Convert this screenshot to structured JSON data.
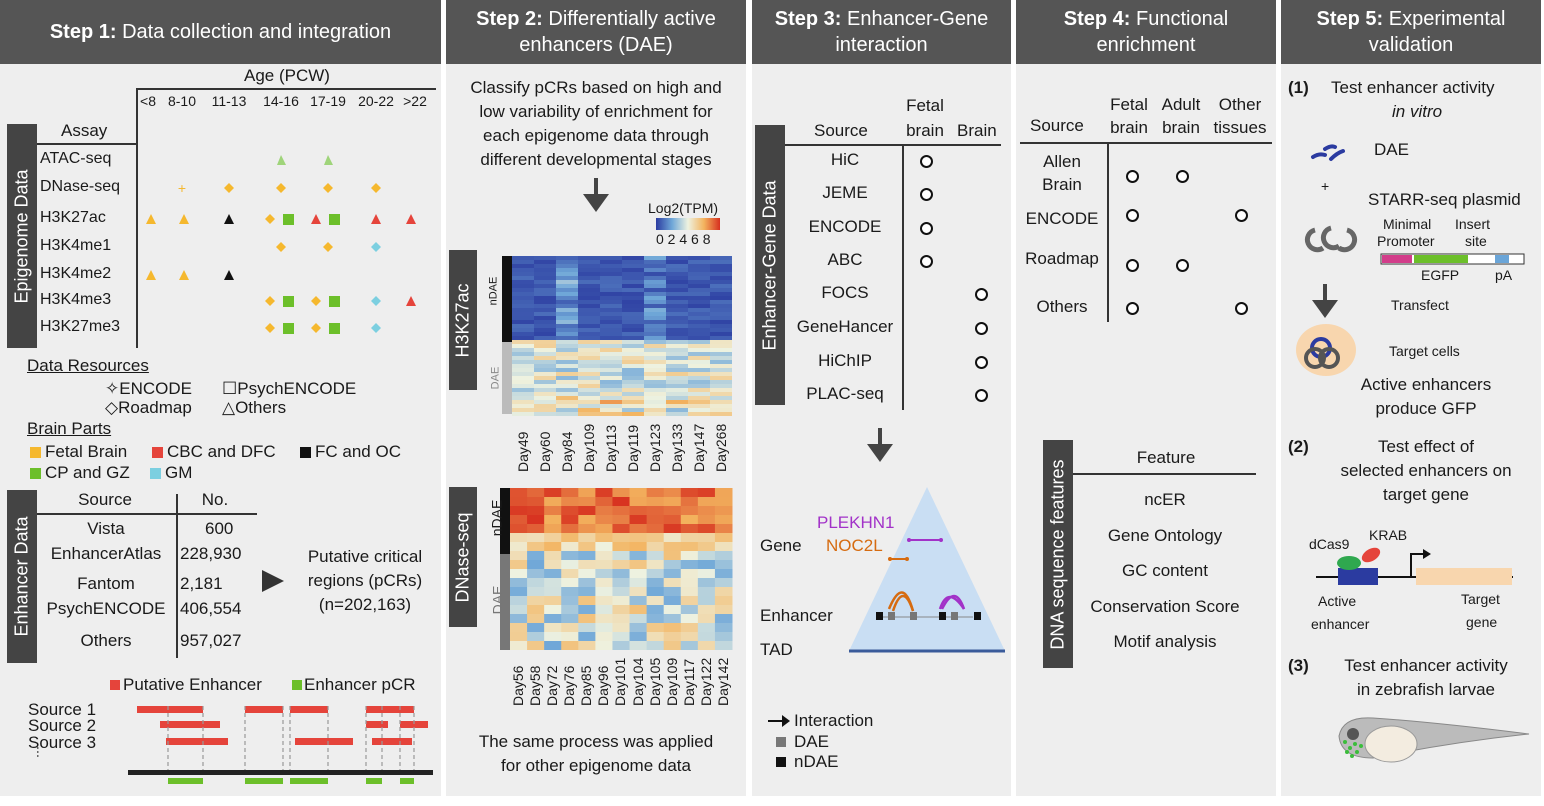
{
  "step1": {
    "header_bold": "Step 1:",
    "header_rest": " Data collection and integration",
    "age_title": "Age (PCW)",
    "age_groups": [
      "<8",
      "8-10",
      "11-13",
      "14-16",
      "17-19",
      "20-22",
      ">22"
    ],
    "assay_header": "Assay",
    "epigenome_label": "Epigenome Data",
    "assays": [
      "ATAC-seq",
      "DNase-seq",
      "H3K27ac",
      "H3K4me1",
      "H3K4me2",
      "H3K4me3",
      "H3K27me3"
    ],
    "data_resources_title": "Data Resources",
    "resources": [
      "ENCODE",
      "PsychENCODE",
      "Roadmap",
      "Others"
    ],
    "brain_parts_title": "Brain Parts",
    "brain_parts": [
      {
        "label": "Fetal Brain",
        "color": "#f5b82e"
      },
      {
        "label": "CBC and DFC",
        "color": "#e5443b"
      },
      {
        "label": "FC and OC",
        "color": "#111111"
      },
      {
        "label": "CP and GZ",
        "color": "#6cbf2a"
      },
      {
        "label": "GM",
        "color": "#7ccfe0"
      }
    ],
    "enhancer_label": "Enhancer Data",
    "table_headers": [
      "Source",
      "No."
    ],
    "sources": [
      {
        "name": "Vista",
        "count": "600"
      },
      {
        "name": "EnhancerAtlas",
        "count": "228,930"
      },
      {
        "name": "Fantom",
        "count": "2,181"
      },
      {
        "name": "PsychENCODE",
        "count": "406,554"
      },
      {
        "name": "Others",
        "count": "957,027"
      }
    ],
    "pcr_line1": "Putative critical",
    "pcr_line2": "regions (pCRs)",
    "pcr_line3": "(n=202,163)",
    "legend_putative": "Putative Enhancer",
    "legend_pcr": "Enhancer pCR",
    "source_rows": [
      "Source 1",
      "Source 2",
      "Source 3"
    ]
  },
  "step2": {
    "header_bold": "Step 2:",
    "header_rest": " Differentially active enhancers (DAE)",
    "desc": [
      "Classify pCRs based on high and",
      "low variability of enrichment for",
      "each epigenome data through",
      "different developmental stages"
    ],
    "scale_title": "Log2(TPM)",
    "scale_ticks": "0 2 4 6 8",
    "hm1_label": "H3K27ac",
    "hm2_label": "DNase-seq",
    "ndae": "nDAE",
    "dae": "DAE",
    "days1": [
      "Day49",
      "Day60",
      "Day84",
      "Day109",
      "Day113",
      "Day119",
      "Day123",
      "Day133",
      "Day147",
      "Day268"
    ],
    "days2": [
      "Day56",
      "Day58",
      "Day72",
      "Day76",
      "Day85",
      "Day96",
      "Day101",
      "Day104",
      "Day105",
      "Day109",
      "Day117",
      "Day122",
      "Day142"
    ],
    "footer": [
      "The same process was applied",
      "for other epigenome data"
    ]
  },
  "step3": {
    "header_bold": "Step 3:",
    "header_rest": " Enhancer-Gene interaction",
    "side_label": "Enhancer-Gene Data",
    "col_source": "Source",
    "col_fetal": [
      "Fetal",
      "brain"
    ],
    "col_brain": "Brain",
    "rows": [
      {
        "name": "HiC",
        "fetal": true,
        "brain": false
      },
      {
        "name": "JEME",
        "fetal": true,
        "brain": false
      },
      {
        "name": "ENCODE",
        "fetal": true,
        "brain": false
      },
      {
        "name": "ABC",
        "fetal": true,
        "brain": false
      },
      {
        "name": "FOCS",
        "fetal": false,
        "brain": true
      },
      {
        "name": "GeneHancer",
        "fetal": false,
        "brain": true
      },
      {
        "name": "HiChIP",
        "fetal": false,
        "brain": true
      },
      {
        "name": "PLAC-seq",
        "fetal": false,
        "brain": true
      }
    ],
    "gene1": "PLEKHN1",
    "gene2": "NOC2L",
    "gene_color1": "#a232c8",
    "gene_color2": "#d66b10",
    "label_gene": "Gene",
    "label_enhancer": "Enhancer",
    "label_tad": "TAD",
    "legend": [
      "Interaction",
      "DAE",
      "nDAE"
    ]
  },
  "step4": {
    "header_bold": "Step 4:",
    "header_rest": " Functional enrichment",
    "col_source": "Source",
    "col_fetal": [
      "Fetal",
      "brain"
    ],
    "col_adult": [
      "Adult",
      "brain"
    ],
    "col_other": [
      "Other",
      "tissues"
    ],
    "rows": [
      {
        "name": [
          "Allen",
          "Brain"
        ],
        "fetal": true,
        "adult": true,
        "other": false
      },
      {
        "name": [
          "ENCODE"
        ],
        "fetal": true,
        "adult": false,
        "other": true
      },
      {
        "name": [
          "Roadmap"
        ],
        "fetal": true,
        "adult": true,
        "other": false
      },
      {
        "name": [
          "Others"
        ],
        "fetal": true,
        "adult": false,
        "other": true
      }
    ],
    "side_label": "DNA sequence features",
    "feature_header": "Feature",
    "features": [
      "ncER",
      "Gene Ontology",
      "GC content",
      "Conservation Score",
      "Motif analysis"
    ]
  },
  "step5": {
    "header_bold": "Step 5:",
    "header_rest": " Experimental validation",
    "n1": "(1)",
    "t1a": "Test enhancer activity",
    "t1b": "in vitro",
    "dae": "DAE",
    "plus": "+",
    "plasmid": "STARR-seq plasmid",
    "minimal": "Minimal",
    "promoter": "Promoter",
    "insert": "Insert",
    "site": "site",
    "egfp": "EGFP",
    "pa": "pA",
    "transfect": "Transfect",
    "target_cells": "Target cells",
    "active1": "Active enhancers",
    "active2": "produce GFP",
    "n2": "(2)",
    "t2": [
      "Test effect of",
      "selected enhancers on",
      "target gene"
    ],
    "dcas9": "dCas9",
    "krab": "KRAB",
    "active_enh": [
      "Active",
      "enhancer"
    ],
    "target_gene": [
      "Target",
      "gene"
    ],
    "n3": "(3)",
    "t3": [
      "Test enhancer activity",
      "in zebrafish larvae"
    ]
  }
}
